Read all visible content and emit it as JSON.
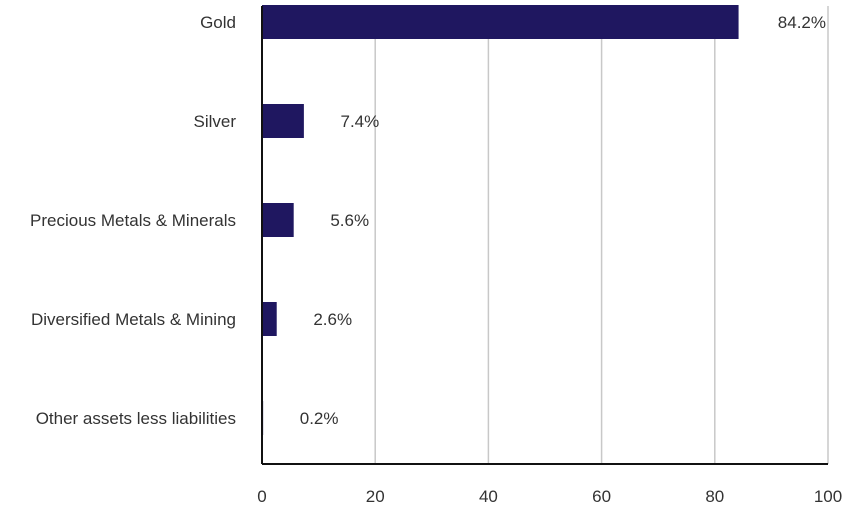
{
  "chart_data": {
    "type": "bar",
    "orientation": "horizontal",
    "categories": [
      "Gold",
      "Silver",
      "Precious Metals & Minerals",
      "Diversified Metals & Mining",
      "Other assets less liabilities"
    ],
    "values": [
      84.2,
      7.4,
      5.6,
      2.6,
      0.2
    ],
    "value_labels": [
      "84.2%",
      "7.4%",
      "5.6%",
      "2.6%",
      "0.2%"
    ],
    "x_ticks": [
      "0",
      "20",
      "40",
      "60",
      "80",
      "100"
    ],
    "xlim": [
      0,
      100
    ],
    "title": "",
    "xlabel": "",
    "ylabel": "",
    "grid": "vertical",
    "legend": "none",
    "bar_color": "#1f1760"
  }
}
